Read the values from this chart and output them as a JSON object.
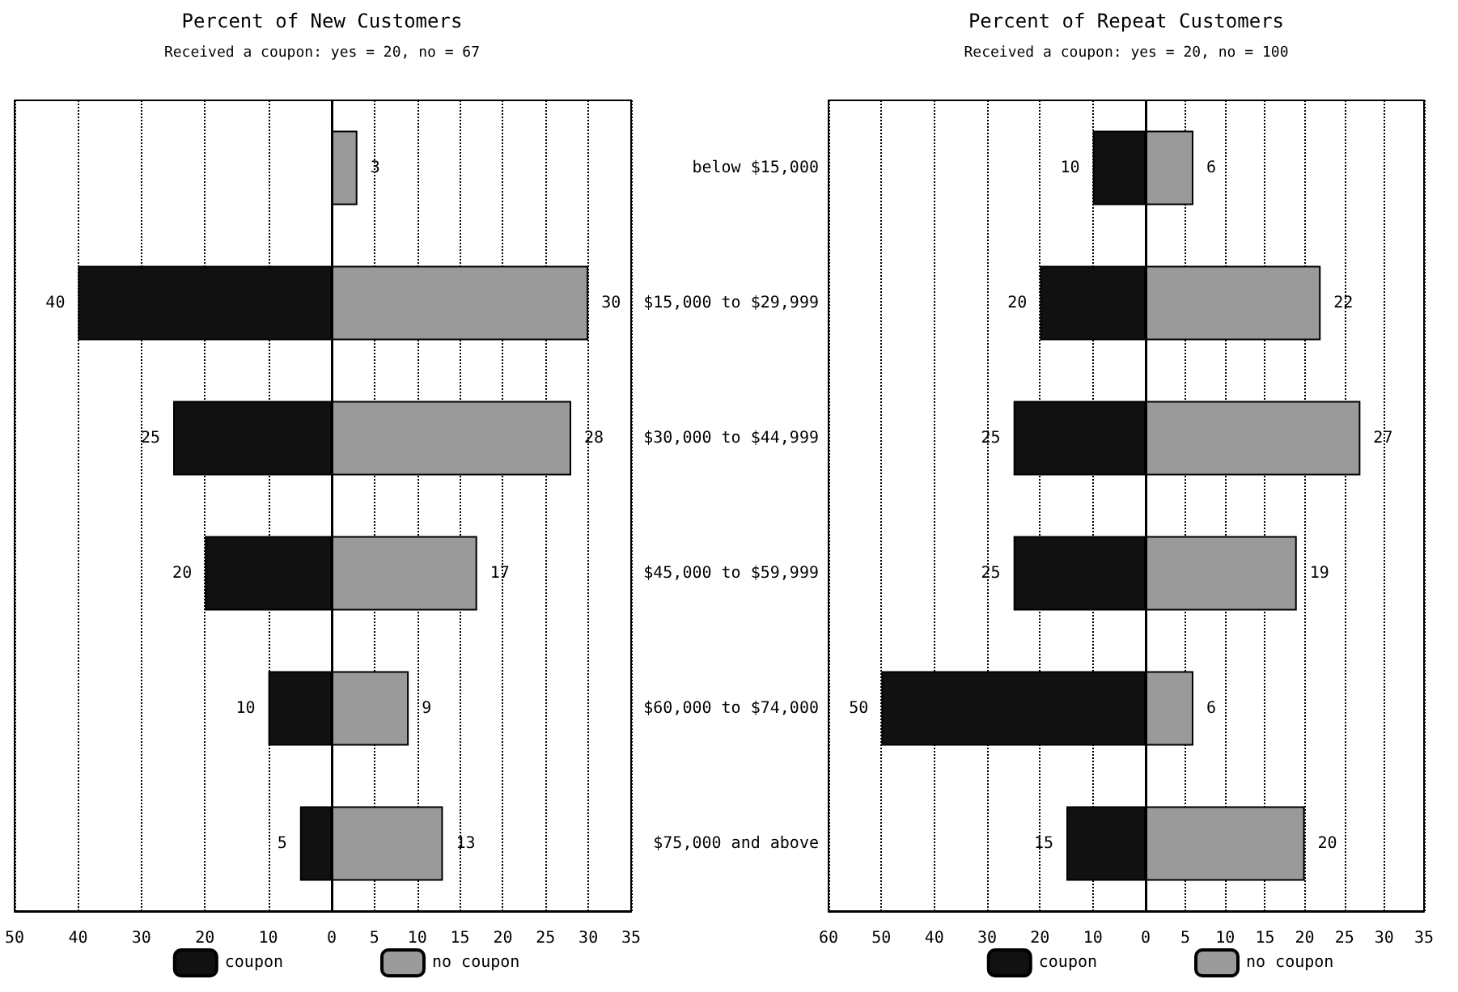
{
  "chart_data": [
    {
      "type": "bar",
      "orientation": "horizontal",
      "title": "Percent of New Customers",
      "subtitle": "Received a coupon: yes = 20, no = 67",
      "categories": [
        null,
        null,
        null,
        null,
        null,
        null
      ],
      "tick_labels": "x",
      "xlim": [
        50,
        0
      ],
      "xticks": [
        50,
        40,
        30,
        20,
        10,
        0
      ],
      "grid": "x",
      "legend": "bottom",
      "data_labels": true,
      "series": [
        {
          "name": "coupon",
          "color": "#111111",
          "values": [
            null,
            40,
            25,
            20,
            10,
            5
          ]
        }
      ]
    },
    {
      "type": "bar",
      "orientation": "horizontal",
      "categories": [
        null,
        null,
        null,
        null,
        null,
        null
      ],
      "tick_labels": "x",
      "xlim": [
        0,
        35
      ],
      "xticks": [
        {
          "value": 0,
          "label": null
        },
        5,
        10,
        15,
        20,
        25,
        30,
        35
      ],
      "grid": "x",
      "legend": "bottom",
      "data_labels": true,
      "series": [
        {
          "name": "no coupon",
          "color": "#9a9a9a",
          "values": [
            3,
            30,
            28,
            17,
            9,
            13
          ]
        }
      ]
    },
    {
      "type": "bar",
      "orientation": "horizontal",
      "title": "Percent of Repeat Customers",
      "subtitle": "Received a coupon: yes = 20, no = 100",
      "categories": [
        "below $15,000",
        "$15,000 to $29,999",
        "$30,000 to $44,999",
        "$45,000 to $59,999",
        "$60,000 to $74,000",
        "$75,000 and above"
      ],
      "xlim": [
        60,
        0
      ],
      "xticks": [
        60,
        50,
        40,
        30,
        20,
        10,
        0
      ],
      "grid": "x",
      "legend": "bottom",
      "data_labels": true,
      "series": [
        {
          "name": "coupon",
          "color": "#111111",
          "values": [
            10,
            20,
            25,
            25,
            50,
            15
          ]
        }
      ]
    },
    {
      "type": "bar",
      "orientation": "horizontal",
      "categories": [
        null,
        null,
        null,
        null,
        null,
        null
      ],
      "tick_labels": "x",
      "xlim": [
        0,
        35
      ],
      "xticks": [
        {
          "value": 0,
          "label": null
        },
        5,
        10,
        15,
        20,
        25,
        30,
        35
      ],
      "grid": "x",
      "legend": "bottom",
      "data_labels": true,
      "series": [
        {
          "name": "no coupon",
          "color": "#9a9a9a",
          "values": [
            6,
            22,
            27,
            19,
            6,
            20
          ]
        }
      ]
    }
  ]
}
